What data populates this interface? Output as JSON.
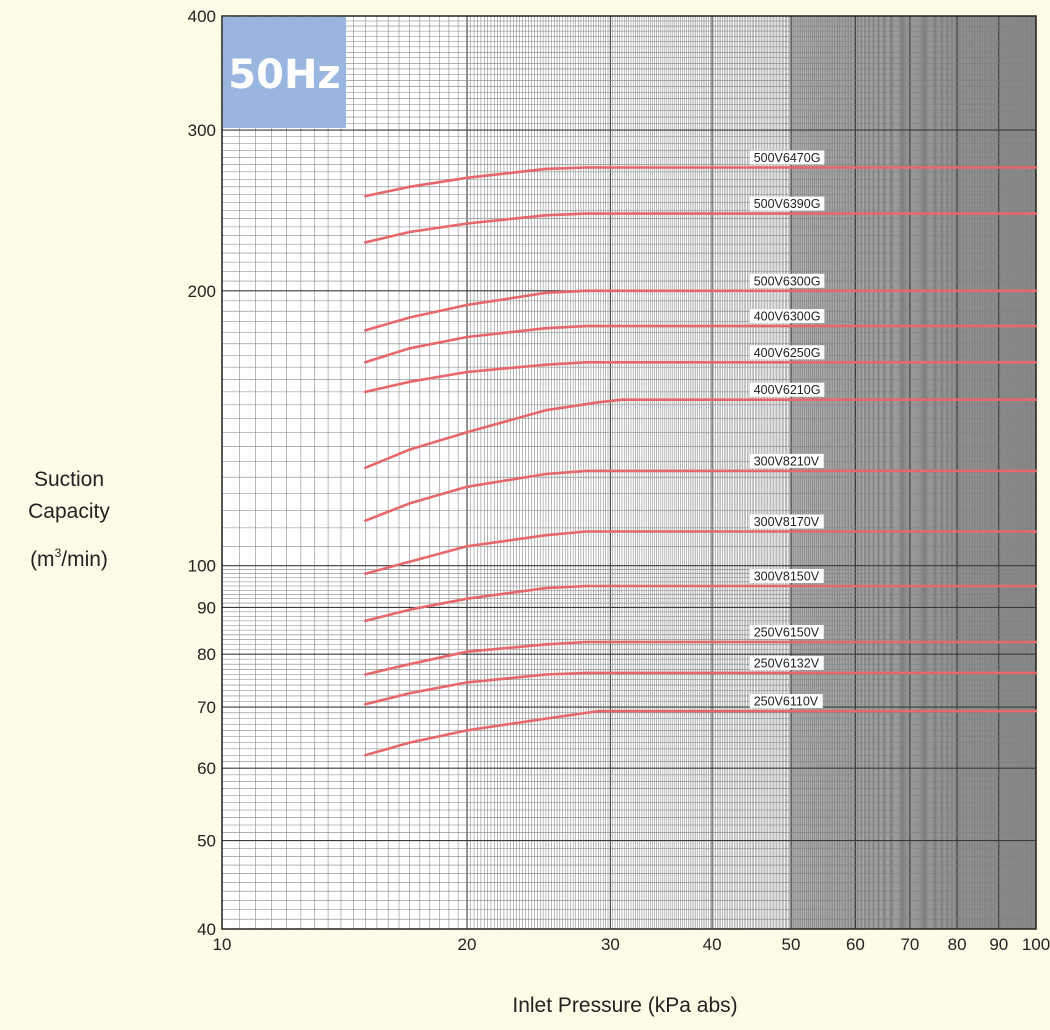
{
  "chart_data": {
    "type": "line",
    "title": "",
    "badge": "50Hz",
    "xlabel": "Inlet Pressure (kPa abs)",
    "ylabel_lines": [
      "Suction",
      "Capacity"
    ],
    "ylabel_unit_prefix": "(m",
    "ylabel_unit_sup": "3",
    "ylabel_unit_suffix": "/min)",
    "x_scale": "log",
    "y_scale": "log",
    "xlim": [
      10,
      100
    ],
    "ylim": [
      40,
      400
    ],
    "x_ticks": [
      {
        "value": 10,
        "label": "10"
      },
      {
        "value": 20,
        "label": "20"
      },
      {
        "value": 30,
        "label": "30"
      },
      {
        "value": 40,
        "label": "40"
      },
      {
        "value": 50,
        "label": "50"
      },
      {
        "value": 60,
        "label": "60"
      },
      {
        "value": 70,
        "label": "70"
      },
      {
        "value": 80,
        "label": "80"
      },
      {
        "value": 90,
        "label": "90"
      },
      {
        "value": 100,
        "label": "100"
      }
    ],
    "y_ticks": [
      {
        "value": 40,
        "label": "40"
      },
      {
        "value": 50,
        "label": "50"
      },
      {
        "value": 60,
        "label": "60"
      },
      {
        "value": 70,
        "label": "70"
      },
      {
        "value": 80,
        "label": "80"
      },
      {
        "value": 90,
        "label": "90"
      },
      {
        "value": 100,
        "label": "100"
      },
      {
        "value": 200,
        "label": "200"
      },
      {
        "value": 300,
        "label": "300"
      },
      {
        "value": 400,
        "label": "400"
      }
    ],
    "grid": true,
    "series_color": "#e8676b",
    "badge_color": "#98b6e0",
    "series": [
      {
        "name": "500V6470G",
        "x": [
          15,
          17,
          20,
          25,
          28,
          100
        ],
        "y": [
          254,
          260,
          266,
          272,
          273,
          273
        ]
      },
      {
        "name": "500V6390G",
        "x": [
          15,
          17,
          20,
          25,
          28,
          100
        ],
        "y": [
          226,
          232,
          237,
          242,
          243,
          243
        ]
      },
      {
        "name": "500V6300G",
        "x": [
          15,
          17,
          20,
          25,
          28,
          100
        ],
        "y": [
          181,
          187,
          193,
          199,
          200,
          200
        ]
      },
      {
        "name": "400V6300G",
        "x": [
          15,
          17,
          20,
          25,
          28,
          100
        ],
        "y": [
          167,
          173,
          178,
          182,
          183,
          183
        ]
      },
      {
        "name": "400V6250G",
        "x": [
          15,
          17,
          20,
          25,
          28,
          100
        ],
        "y": [
          155,
          159,
          163,
          166,
          167,
          167
        ]
      },
      {
        "name": "400V6210G",
        "x": [
          15,
          17,
          20,
          25,
          29,
          31,
          100
        ],
        "y": [
          128,
          134,
          140,
          148,
          151,
          152,
          152
        ]
      },
      {
        "name": "300V8210V",
        "x": [
          15,
          17,
          20,
          25,
          28,
          100
        ],
        "y": [
          112,
          117,
          122,
          126,
          127,
          127
        ]
      },
      {
        "name": "300V8170V",
        "x": [
          15,
          17,
          20,
          25,
          28,
          100
        ],
        "y": [
          98,
          101,
          105,
          108,
          109,
          109
        ]
      },
      {
        "name": "300V8150V",
        "x": [
          15,
          17,
          20,
          25,
          28,
          100
        ],
        "y": [
          87,
          89.5,
          92,
          94.5,
          95,
          95
        ]
      },
      {
        "name": "250V6150V",
        "x": [
          15,
          17,
          20,
          25,
          28,
          100
        ],
        "y": [
          76,
          78,
          80.5,
          82,
          82.5,
          82.5
        ]
      },
      {
        "name": "250V6132V",
        "x": [
          15,
          17,
          20,
          25,
          28,
          100
        ],
        "y": [
          70.5,
          72.5,
          74.5,
          76,
          76.3,
          76.3
        ]
      },
      {
        "name": "250V6110V",
        "x": [
          15,
          17,
          20,
          25,
          29,
          100
        ],
        "y": [
          62,
          64,
          66,
          68,
          69.3,
          69.3
        ]
      }
    ]
  }
}
